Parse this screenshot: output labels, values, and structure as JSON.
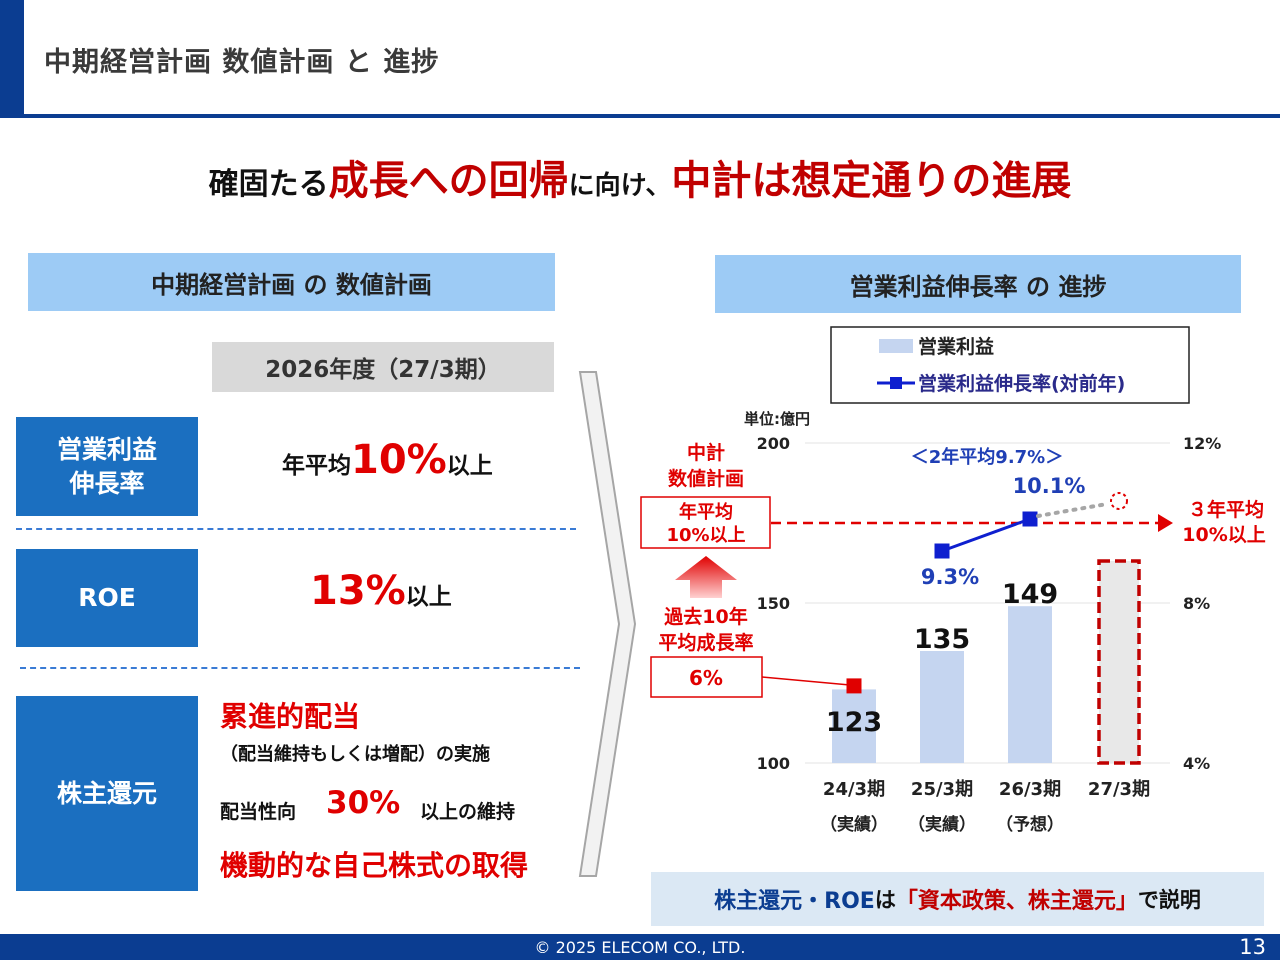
{
  "slide": {
    "title": "中期経営計画 数値計画 と 進捗",
    "page_number": "13",
    "copyright": "© 2025 ELECOM CO., LTD."
  },
  "headline": {
    "part1": "確固たる",
    "part2": "成長への回帰",
    "part3": "に向け、",
    "part4": "中計は想定通りの進展"
  },
  "left": {
    "header": "中期経営計画 の 数値計画",
    "year_label": "2026年度（27/3期）",
    "rows": [
      {
        "label": "営業利益\n伸長率",
        "pre": "年平均",
        "value": "10%",
        "post": "以上"
      },
      {
        "label": "ROE",
        "value": "13%",
        "post": "以上"
      },
      {
        "label": "株主還元"
      }
    ],
    "returns": {
      "line1": "累進的配当",
      "line2": "（配当維持もしくは増配）の実施",
      "line3_pre": "配当性向",
      "line3_value": "30%",
      "line3_post": "以上の維持",
      "line4": "機動的な自己株式の取得"
    }
  },
  "right": {
    "header": "営業利益伸長率 の 進捗",
    "note": {
      "part1": "株主還元・ROE",
      "part2": "は",
      "part3": "「資本政策、株主還元」",
      "part4": "で説明"
    }
  },
  "chart_data": {
    "type": "bar",
    "unit_label": "単位:億円",
    "categories": [
      "24/3期",
      "25/3期",
      "26/3期",
      "27/3期"
    ],
    "category_sublabels": [
      "（実績）",
      "（実績）",
      "（予想）",
      ""
    ],
    "series": [
      {
        "name": "営業利益",
        "type": "bar",
        "values": [
          123,
          135,
          149,
          null
        ]
      },
      {
        "name": "営業利益伸長率(対前年)",
        "type": "line",
        "axis": "right",
        "values": [
          null,
          9.3,
          10.1,
          null
        ]
      }
    ],
    "value_labels": [
      "123",
      "135",
      "149"
    ],
    "rate_labels": [
      "9.3%",
      "10.1%"
    ],
    "left_axis": {
      "ticks": [
        "100",
        "150",
        "200"
      ],
      "range": [
        100,
        200
      ]
    },
    "right_axis": {
      "ticks": [
        "4%",
        "8%",
        "12%"
      ],
      "range": [
        4,
        12
      ]
    },
    "target_rate": 10,
    "forecast_placeholder_category": "27/3期",
    "colors": {
      "bar": "#c5d5f0",
      "line": "#0e1fcf",
      "target": "#e00000",
      "forecast_outline": "#c00000"
    },
    "legend": {
      "placement": "top",
      "items": [
        "営業利益",
        "営業利益伸長率(対前年)"
      ]
    },
    "annotations": {
      "two_year_avg": "＜2年平均9.7%＞",
      "plan_title_1": "中計",
      "plan_title_2": "数値計画",
      "plan_box_1": "年平均",
      "plan_box_2": "10%以上",
      "three_year_1": "３年平均",
      "three_year_2": "10%以上",
      "past_title_1": "過去10年",
      "past_title_2": "平均成長率",
      "past_value": "6%"
    }
  }
}
